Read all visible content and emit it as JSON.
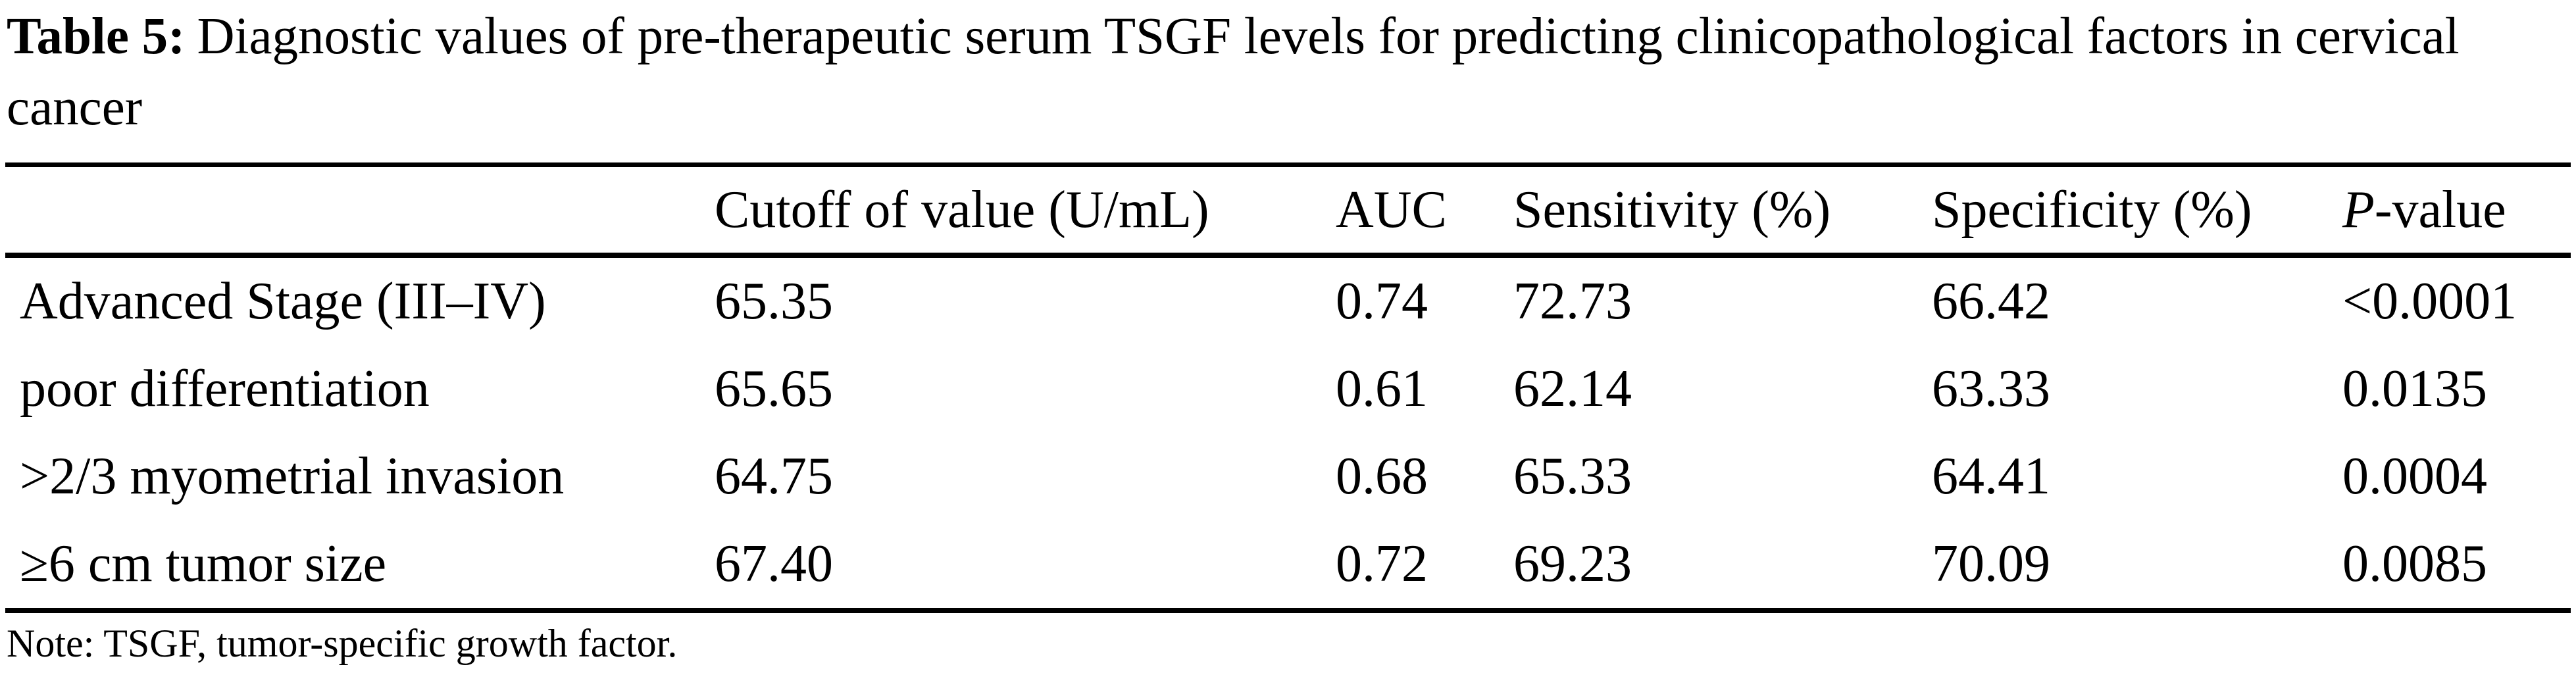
{
  "title": {
    "label": "Table 5:",
    "text": "Diagnostic values of pre-therapeutic serum TSGF levels for predicting clinicopathological factors in cervical cancer"
  },
  "table": {
    "header": {
      "label": "",
      "cutoff": "Cutoff of value (U/mL)",
      "auc": "AUC",
      "sensitivity": "Sensitivity (%)",
      "specificity": "Specificity (%)",
      "p_italic": "P",
      "p_rest": "-value"
    },
    "rows": [
      {
        "label": "Advanced Stage (III–IV)",
        "cutoff": "65.35",
        "auc": "0.74",
        "sensitivity": "72.73",
        "specificity": "66.42",
        "p_value": "<0.0001"
      },
      {
        "label": "poor differentiation",
        "cutoff": "65.65",
        "auc": "0.61",
        "sensitivity": "62.14",
        "specificity": "63.33",
        "p_value": "0.0135"
      },
      {
        "label": ">2/3 myometrial invasion",
        "cutoff": "64.75",
        "auc": "0.68",
        "sensitivity": "65.33",
        "specificity": "64.41",
        "p_value": "0.0004"
      },
      {
        "label": "≥6 cm tumor size",
        "cutoff": "67.40",
        "auc": "0.72",
        "sensitivity": "69.23",
        "specificity": "70.09",
        "p_value": "0.0085"
      }
    ]
  },
  "note": "Note: TSGF, tumor-specific growth factor.",
  "colors": {
    "text": "#000000",
    "background": "#ffffff",
    "rule": "#000000"
  }
}
